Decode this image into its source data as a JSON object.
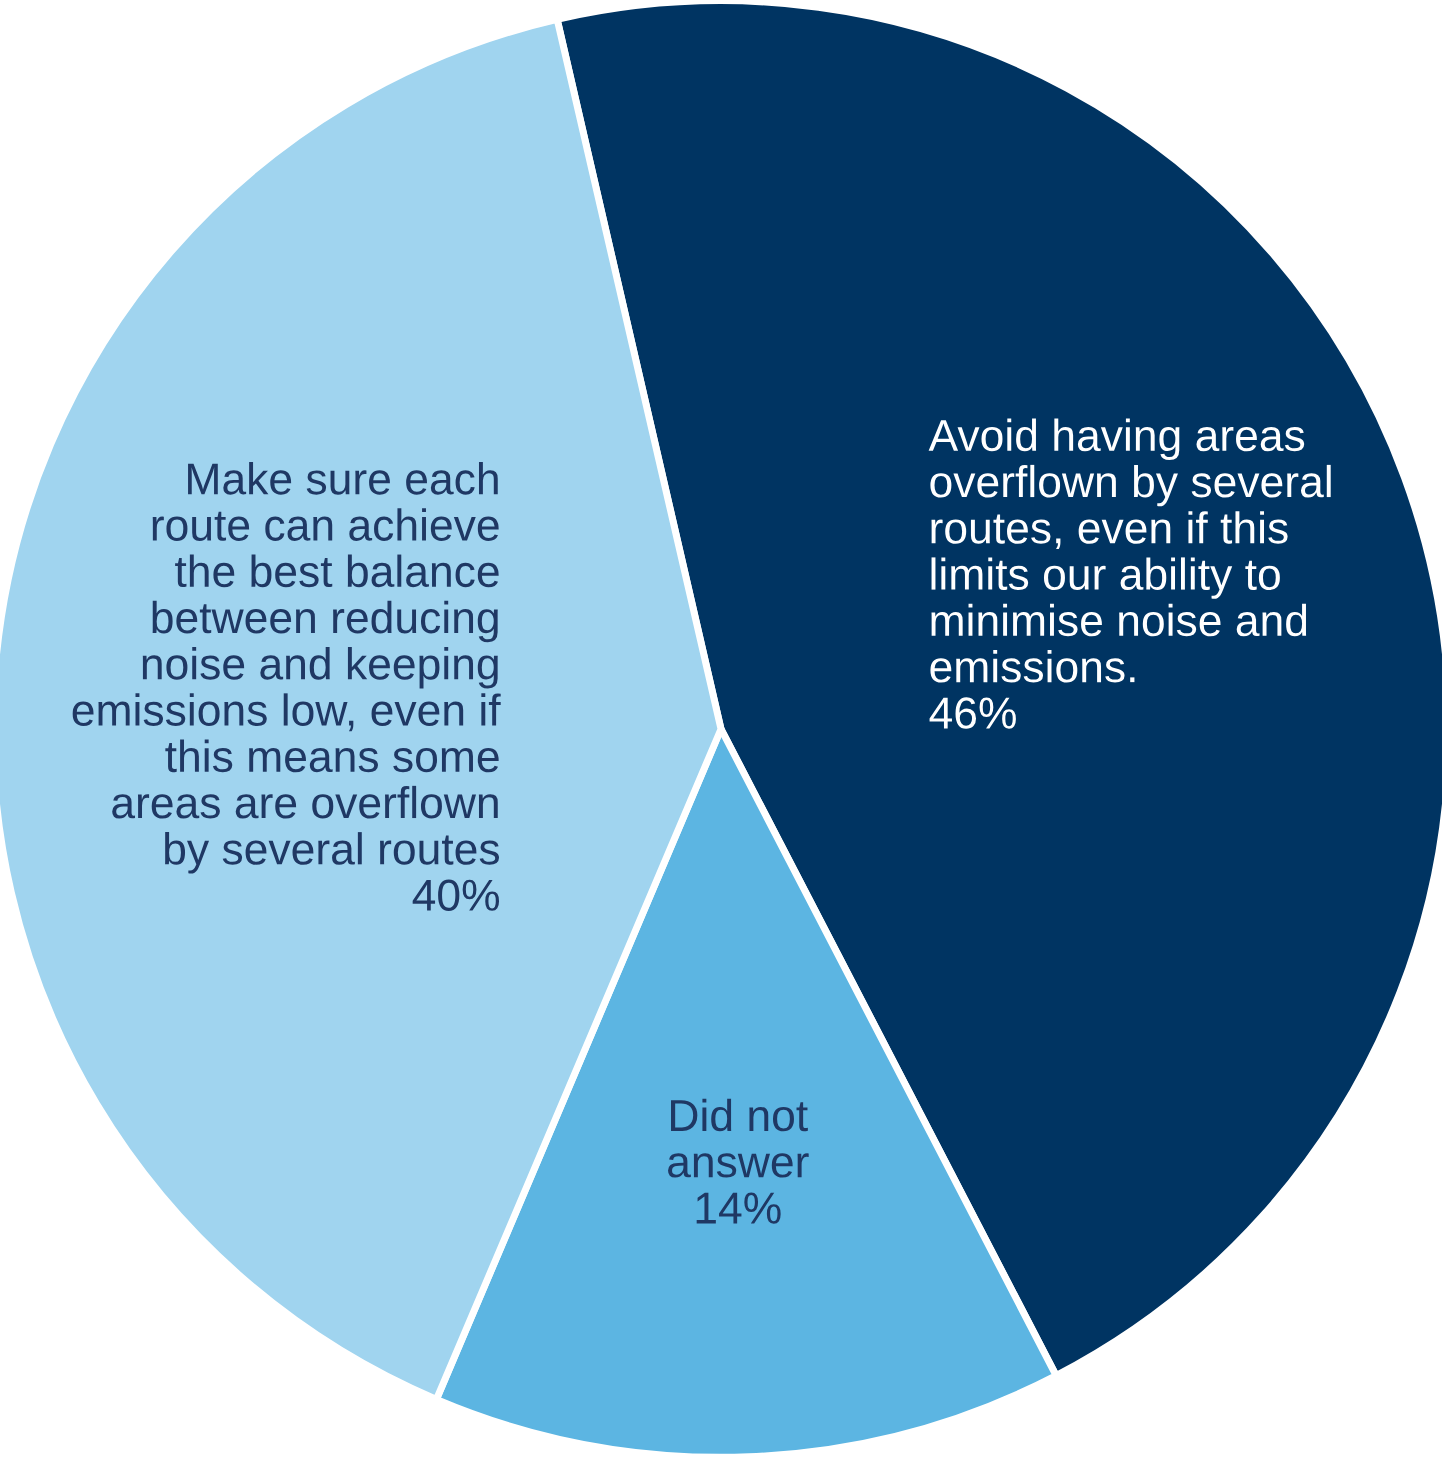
{
  "chart_data": {
    "type": "pie",
    "categories": [
      "Avoid having areas\noverflown by several\nroutes, even if this\nlimits our ability to\nminimise noise and\nemissions.",
      "Did not\nanswer",
      "Make sure each\nroute can achieve\nthe best balance\nbetween reducing\nnoise and keeping\nemissions low, even if\nthis means some\nareas are overflown\nby several routes"
    ],
    "values": [
      46,
      14,
      40
    ],
    "value_labels": [
      "46%",
      "14%",
      "40%"
    ],
    "colors": [
      "#003462",
      "#5cb5e2",
      "#a0d4ef"
    ]
  }
}
